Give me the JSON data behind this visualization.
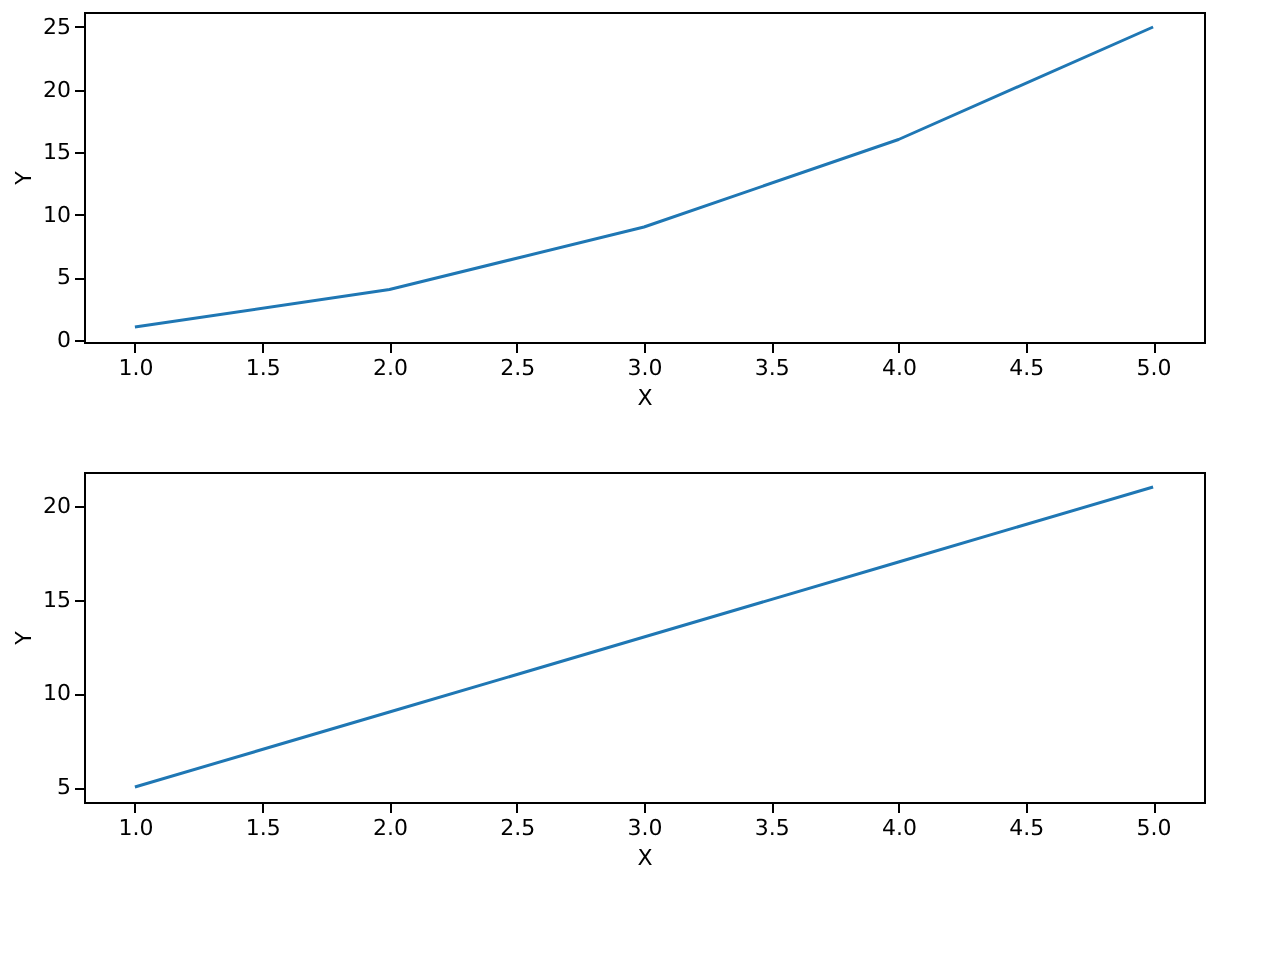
{
  "chart_data": [
    {
      "type": "line",
      "xlabel": "X",
      "ylabel": "Y",
      "x": [
        1,
        2,
        3,
        4,
        5
      ],
      "series": [
        {
          "color": "#1f77b4",
          "values": [
            1,
            4,
            9,
            16,
            25
          ]
        }
      ],
      "xlim": [
        0.8,
        5.2
      ],
      "ylim": [
        -0.2,
        26.2
      ],
      "xticks": [
        {
          "value": 1,
          "label": "1.0"
        },
        {
          "value": 1.5,
          "label": "1.5"
        },
        {
          "value": 2,
          "label": "2.0"
        },
        {
          "value": 2.5,
          "label": "2.5"
        },
        {
          "value": 3,
          "label": "3.0"
        },
        {
          "value": 3.5,
          "label": "3.5"
        },
        {
          "value": 4,
          "label": "4.0"
        },
        {
          "value": 4.5,
          "label": "4.5"
        },
        {
          "value": 5,
          "label": "5.0"
        }
      ],
      "yticks": [
        0,
        5,
        10,
        15,
        20,
        25
      ],
      "grid": false
    },
    {
      "type": "line",
      "xlabel": "X",
      "ylabel": "Y",
      "x": [
        1,
        2,
        3,
        4,
        5
      ],
      "series": [
        {
          "color": "#1f77b4",
          "values": [
            5,
            9,
            13,
            17,
            21
          ]
        }
      ],
      "xlim": [
        0.8,
        5.2
      ],
      "ylim": [
        4.2,
        21.8
      ],
      "xticks": [
        {
          "value": 1,
          "label": "1.0"
        },
        {
          "value": 1.5,
          "label": "1.5"
        },
        {
          "value": 2,
          "label": "2.0"
        },
        {
          "value": 2.5,
          "label": "2.5"
        },
        {
          "value": 3,
          "label": "3.0"
        },
        {
          "value": 3.5,
          "label": "3.5"
        },
        {
          "value": 4,
          "label": "4.0"
        },
        {
          "value": 4.5,
          "label": "4.5"
        },
        {
          "value": 5,
          "label": "5.0"
        }
      ],
      "yticks": [
        5,
        10,
        15,
        20
      ],
      "grid": false
    }
  ]
}
